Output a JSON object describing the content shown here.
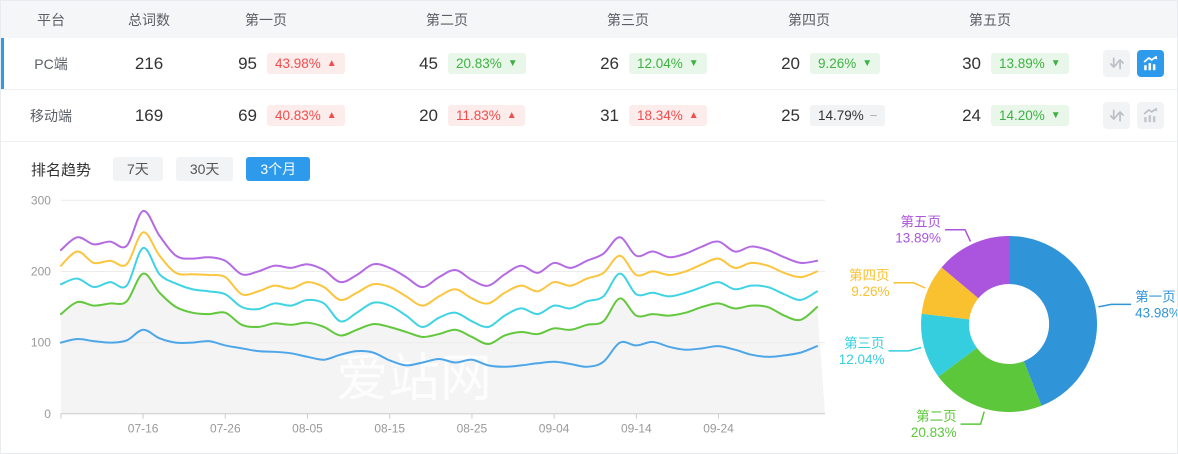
{
  "table": {
    "headers": {
      "platform": "平台",
      "total": "总词数",
      "p1": "第一页",
      "p2": "第二页",
      "p3": "第三页",
      "p4": "第四页",
      "p5": "第五页"
    },
    "rows": [
      {
        "platform": "PC端",
        "total": "216",
        "selected": true,
        "pages": [
          {
            "count": "95",
            "pct": "43.98%",
            "dir": "up"
          },
          {
            "count": "45",
            "pct": "20.83%",
            "dir": "down"
          },
          {
            "count": "26",
            "pct": "12.04%",
            "dir": "down"
          },
          {
            "count": "20",
            "pct": "9.26%",
            "dir": "down"
          },
          {
            "count": "30",
            "pct": "13.89%",
            "dir": "down"
          }
        ],
        "chart_active": true
      },
      {
        "platform": "移动端",
        "total": "169",
        "selected": false,
        "pages": [
          {
            "count": "69",
            "pct": "40.83%",
            "dir": "up"
          },
          {
            "count": "20",
            "pct": "11.83%",
            "dir": "up"
          },
          {
            "count": "31",
            "pct": "18.34%",
            "dir": "up"
          },
          {
            "count": "25",
            "pct": "14.79%",
            "dir": "flat"
          },
          {
            "count": "24",
            "pct": "14.20%",
            "dir": "down"
          }
        ],
        "chart_active": false
      }
    ]
  },
  "trend": {
    "title": "排名趋势",
    "tabs": [
      {
        "label": "7天",
        "active": false
      },
      {
        "label": "30天",
        "active": false
      },
      {
        "label": "3个月",
        "active": true
      }
    ]
  },
  "watermark": "爱站网",
  "colors": {
    "accent": "#2e9aec",
    "rise_red": "#f24c4c",
    "fall_green": "#3fb143"
  },
  "chart_data": [
    {
      "type": "line",
      "title": "排名趋势 3个月",
      "x_ticks": [
        "07-16",
        "07-26",
        "08-05",
        "08-15",
        "08-25",
        "09-04",
        "09-14",
        "09-24"
      ],
      "ylim": [
        0,
        300
      ],
      "yticks": [
        0,
        100,
        200,
        300
      ],
      "grid": true,
      "legend_position": "none",
      "area_fill_under": "第二页",
      "area_fill_color": "#f4f4f4",
      "series": [
        {
          "name": "第一页",
          "color": "#4da6e8",
          "values": [
            100,
            105,
            102,
            100,
            103,
            118,
            106,
            100,
            100,
            102,
            96,
            92,
            88,
            87,
            85,
            80,
            76,
            83,
            88,
            86,
            75,
            68,
            72,
            77,
            72,
            76,
            68,
            66,
            68,
            71,
            73,
            70,
            66,
            73,
            100,
            96,
            101,
            94,
            90,
            92,
            95,
            90,
            83,
            80,
            82,
            86,
            95
          ]
        },
        {
          "name": "第二页",
          "color": "#63c83e",
          "values": [
            140,
            157,
            152,
            155,
            158,
            197,
            170,
            150,
            142,
            140,
            142,
            125,
            122,
            127,
            125,
            128,
            122,
            110,
            118,
            126,
            122,
            115,
            108,
            112,
            118,
            108,
            98,
            110,
            115,
            112,
            120,
            118,
            125,
            130,
            162,
            138,
            140,
            138,
            142,
            150,
            155,
            148,
            152,
            150,
            138,
            132,
            150
          ]
        },
        {
          "name": "第三页",
          "color": "#3fd3e3",
          "values": [
            182,
            190,
            178,
            185,
            180,
            233,
            196,
            183,
            175,
            172,
            168,
            150,
            147,
            155,
            152,
            160,
            155,
            130,
            142,
            156,
            152,
            138,
            122,
            135,
            142,
            130,
            122,
            138,
            148,
            140,
            152,
            148,
            158,
            165,
            197,
            168,
            170,
            165,
            170,
            178,
            185,
            175,
            180,
            178,
            168,
            160,
            172
          ]
        },
        {
          "name": "第四页",
          "color": "#fbc53e",
          "values": [
            208,
            228,
            212,
            215,
            210,
            255,
            222,
            198,
            196,
            195,
            192,
            168,
            172,
            180,
            176,
            185,
            178,
            160,
            170,
            182,
            178,
            165,
            152,
            165,
            175,
            162,
            155,
            170,
            180,
            172,
            185,
            180,
            190,
            198,
            222,
            195,
            200,
            195,
            200,
            210,
            218,
            205,
            212,
            208,
            198,
            192,
            200
          ]
        },
        {
          "name": "第五页",
          "color": "#b46ae3",
          "values": [
            230,
            248,
            238,
            242,
            236,
            285,
            250,
            222,
            218,
            220,
            215,
            196,
            200,
            208,
            205,
            210,
            202,
            185,
            195,
            210,
            205,
            192,
            178,
            192,
            202,
            188,
            180,
            196,
            208,
            198,
            212,
            205,
            215,
            225,
            248,
            222,
            228,
            220,
            225,
            235,
            242,
            228,
            235,
            230,
            220,
            212,
            215
          ]
        }
      ]
    },
    {
      "type": "pie",
      "subtype": "donut",
      "start_angle": "top-clockwise",
      "slices": [
        {
          "label": "第一页",
          "value": 43.98,
          "color": "#3094d9"
        },
        {
          "label": "第二页",
          "value": 20.83,
          "color": "#5cc73a"
        },
        {
          "label": "第三页",
          "value": 12.04,
          "color": "#35cede"
        },
        {
          "label": "第四页",
          "value": 9.26,
          "color": "#f9c02f"
        },
        {
          "label": "第五页",
          "value": 13.89,
          "color": "#ab54dd"
        }
      ]
    }
  ]
}
